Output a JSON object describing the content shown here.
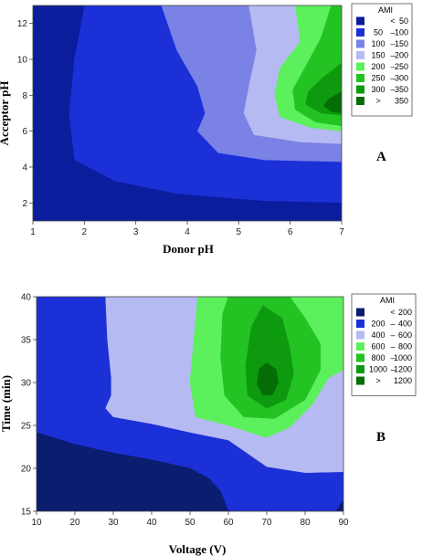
{
  "chart_data": [
    {
      "type": "contour",
      "panel_label": "A",
      "xlabel": "Donor pH",
      "ylabel": "Acceptor pH",
      "xlim": [
        1,
        7
      ],
      "ylim": [
        1,
        13
      ],
      "xticks": [
        "1",
        "2",
        "3",
        "4",
        "5",
        "6",
        "7"
      ],
      "yticks": [
        "2",
        "4",
        "6",
        "8",
        "10",
        "12"
      ],
      "legend": {
        "title": "AMI",
        "placement": "right",
        "entries": [
          {
            "low": "",
            "op": "<",
            "high": "50",
            "color": "#0a1d9c"
          },
          {
            "low": "50",
            "op": "–",
            "high": "100",
            "color": "#1c30d8"
          },
          {
            "low": "100",
            "op": "–",
            "high": "150",
            "color": "#7a82e6"
          },
          {
            "low": "150",
            "op": "–",
            "high": "200",
            "color": "#b6baf2"
          },
          {
            "low": "200",
            "op": "–",
            "high": "250",
            "color": "#5cf05c"
          },
          {
            "low": "250",
            "op": "–",
            "high": "300",
            "color": "#22c322"
          },
          {
            "low": "300",
            "op": "–",
            "high": "350",
            "color": "#0e9a0e"
          },
          {
            "low": ">",
            "op": "",
            "high": "350",
            "color": "#056d05"
          }
        ]
      },
      "regions": [
        {
          "level": "< 50",
          "color": "#0a1d9c",
          "points": [
            [
              1,
              1
            ],
            [
              1,
              13
            ],
            [
              2.0,
              13
            ],
            [
              1.8,
              10
            ],
            [
              1.7,
              7
            ],
            [
              1.8,
              4.4
            ],
            [
              2.6,
              3.2
            ],
            [
              3.8,
              2.5
            ],
            [
              5.5,
              2.1
            ],
            [
              7,
              2.0
            ],
            [
              7,
              1
            ]
          ]
        },
        {
          "level": "100 – 150",
          "color": "#7a82e6",
          "points": [
            [
              3.5,
              13
            ],
            [
              3.8,
              10.5
            ],
            [
              4.2,
              8.5
            ],
            [
              4.35,
              7
            ],
            [
              4.2,
              6.0
            ],
            [
              4.6,
              4.8
            ],
            [
              5.5,
              4.4
            ],
            [
              7,
              4.3
            ],
            [
              7,
              13
            ]
          ]
        },
        {
          "level": "150 – 200",
          "color": "#b6baf2",
          "points": [
            [
              5.2,
              13
            ],
            [
              5.35,
              10.5
            ],
            [
              5.2,
              8.5
            ],
            [
              5.1,
              7
            ],
            [
              5.3,
              5.8
            ],
            [
              6.2,
              5.4
            ],
            [
              7,
              5.3
            ],
            [
              7,
              13
            ]
          ]
        },
        {
          "level": "200 – 250",
          "color": "#5cf05c",
          "points": [
            [
              6.1,
              13
            ],
            [
              6.2,
              11
            ],
            [
              5.8,
              9.5
            ],
            [
              5.7,
              8
            ],
            [
              5.8,
              6.8
            ],
            [
              6.4,
              6.2
            ],
            [
              7,
              6.0
            ],
            [
              7,
              13
            ]
          ]
        },
        {
          "level": "250 – 300",
          "color": "#22c322",
          "points": [
            [
              6.8,
              13
            ],
            [
              6.6,
              11.2
            ],
            [
              6.3,
              9.6
            ],
            [
              6.05,
              8.3
            ],
            [
              6.1,
              7.2
            ],
            [
              6.5,
              6.5
            ],
            [
              7,
              6.3
            ],
            [
              7,
              13
            ]
          ]
        },
        {
          "level": "300 – 350",
          "color": "#0e9a0e",
          "points": [
            [
              7,
              9.8
            ],
            [
              6.6,
              8.9
            ],
            [
              6.35,
              8.2
            ],
            [
              6.3,
              7.5
            ],
            [
              6.6,
              7.0
            ],
            [
              7,
              6.9
            ]
          ]
        },
        {
          "level": "> 350",
          "color": "#056d05",
          "points": [
            [
              7,
              8.2
            ],
            [
              6.75,
              7.8
            ],
            [
              6.65,
              7.4
            ],
            [
              6.8,
              7.1
            ],
            [
              7,
              7.0
            ]
          ]
        }
      ],
      "background_color": "#1c30d8"
    },
    {
      "type": "contour",
      "panel_label": "B",
      "xlabel": "Voltage (V)",
      "ylabel": "Time (min)",
      "xlim": [
        10,
        90
      ],
      "ylim": [
        15,
        40
      ],
      "xticks": [
        "10",
        "20",
        "30",
        "40",
        "50",
        "60",
        "70",
        "80",
        "90"
      ],
      "yticks": [
        "15",
        "20",
        "25",
        "30",
        "35",
        "40"
      ],
      "legend": {
        "title": "AMI",
        "placement": "right",
        "entries": [
          {
            "low": "",
            "op": "<",
            "high": "200",
            "color": "#0a1d6f"
          },
          {
            "low": "200",
            "op": "–",
            "high": "400",
            "color": "#1c30d8"
          },
          {
            "low": "400",
            "op": "–",
            "high": "600",
            "color": "#b6baf2"
          },
          {
            "low": "600",
            "op": "–",
            "high": "800",
            "color": "#5cf05c"
          },
          {
            "low": "800",
            "op": "–",
            "high": "1000",
            "color": "#22c322"
          },
          {
            "low": "1000",
            "op": "–",
            "high": "1200",
            "color": "#0e9a0e"
          },
          {
            "low": ">",
            "op": "",
            "high": "1200",
            "color": "#056d05"
          }
        ]
      },
      "regions": [
        {
          "level": "< 200",
          "color": "#0a1d6f",
          "points": [
            [
              10,
              15
            ],
            [
              10,
              24.2
            ],
            [
              20,
              22.8
            ],
            [
              30,
              21.8
            ],
            [
              40,
              21.0
            ],
            [
              50,
              20.0
            ],
            [
              55,
              18.8
            ],
            [
              58,
              17.3
            ],
            [
              60,
              15
            ]
          ]
        },
        {
          "level": "400 – 600",
          "color": "#b6baf2",
          "points": [
            [
              28,
              40
            ],
            [
              28.5,
              35
            ],
            [
              29.5,
              30.5
            ],
            [
              29.5,
              28.5
            ],
            [
              28,
              27
            ],
            [
              30,
              26.0
            ],
            [
              40,
              25.2
            ],
            [
              50,
              24.2
            ],
            [
              60,
              23.3
            ],
            [
              70,
              20.2
            ],
            [
              80,
              19.5
            ],
            [
              90,
              19.6
            ],
            [
              90,
              40
            ]
          ]
        },
        {
          "level": "600 – 800",
          "color": "#5cf05c",
          "points": [
            [
              52,
              40
            ],
            [
              51,
              35
            ],
            [
              50,
              30
            ],
            [
              51.5,
              26.0
            ],
            [
              60,
              25.0
            ],
            [
              70,
              23.6
            ],
            [
              76,
              24.8
            ],
            [
              82,
              27.5
            ],
            [
              86,
              30.5
            ],
            [
              90,
              31.5
            ],
            [
              90,
              40
            ]
          ]
        },
        {
          "level": "800 – 1000",
          "color": "#22c322",
          "points": [
            [
              60,
              40
            ],
            [
              76,
              40
            ],
            [
              80,
              37.5
            ],
            [
              84,
              34.5
            ],
            [
              84,
              31.5
            ],
            [
              80,
              28.0
            ],
            [
              72,
              25.8
            ],
            [
              64,
              26.0
            ],
            [
              59,
              28.5
            ],
            [
              58,
              33
            ],
            [
              58.5,
              38
            ]
          ]
        },
        {
          "level": "1000 – 1200",
          "color": "#0e9a0e",
          "points": [
            [
              69,
              39
            ],
            [
              74,
              37.5
            ],
            [
              76,
              34
            ],
            [
              77,
              31
            ],
            [
              75,
              28.0
            ],
            [
              70,
              27.0
            ],
            [
              65,
              28.5
            ],
            [
              64.5,
              32
            ],
            [
              66,
              36.5
            ]
          ]
        },
        {
          "level": "> 1200",
          "color": "#056d05",
          "points": [
            [
              70,
              32.3
            ],
            [
              72.5,
              31.5
            ],
            [
              73,
              30.0
            ],
            [
              71.5,
              28.6
            ],
            [
              69,
              28.5
            ],
            [
              67.5,
              29.8
            ],
            [
              68,
              31.6
            ]
          ]
        },
        {
          "level": "< 200",
          "color": "#0a1d6f",
          "points": [
            [
              88,
              15
            ],
            [
              90,
              15
            ],
            [
              90,
              16.3
            ]
          ]
        }
      ],
      "background_color": "#1c30d8"
    }
  ]
}
